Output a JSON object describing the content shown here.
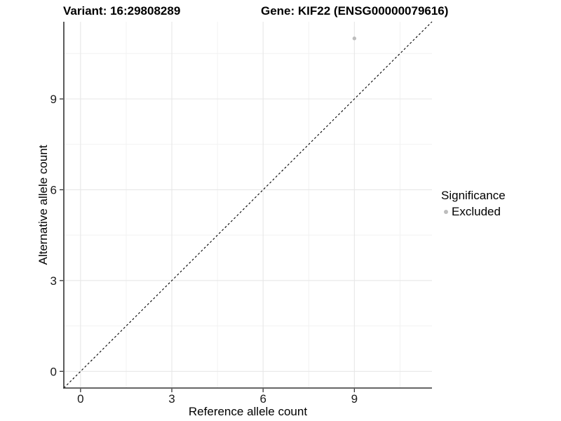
{
  "chart_data": {
    "type": "scatter",
    "title_left": "Variant: 16:29808289",
    "title_right": "Gene: KIF22 (ENSG00000079616)",
    "xlabel": "Reference allele count",
    "ylabel": "Alternative allele count",
    "xlim": [
      -0.55,
      11.55
    ],
    "ylim": [
      -0.55,
      11.55
    ],
    "x_major_ticks": [
      0,
      3,
      6,
      9
    ],
    "y_major_ticks": [
      0,
      3,
      6,
      9
    ],
    "x_minor_ticks": [
      1.5,
      4.5,
      7.5,
      10.5
    ],
    "y_minor_ticks": [
      1.5,
      4.5,
      7.5,
      10.5
    ],
    "grid": true,
    "points": [
      {
        "x": 9,
        "y": 11,
        "significance": "Excluded"
      }
    ],
    "reference_line": {
      "type": "identity-diagonal",
      "style": "dashed",
      "color": "#000000"
    },
    "legend": {
      "title": "Significance",
      "position": "right",
      "items": [
        {
          "label": "Excluded",
          "color": "#bdbdbd"
        }
      ]
    },
    "colors": {
      "point": "#bdbdbd",
      "grid_major": "#e7e7e7",
      "grid_minor": "#f2f2f2",
      "axis_line": "#333333",
      "tick_label": "#1a1a1a",
      "background": "#ffffff"
    }
  }
}
